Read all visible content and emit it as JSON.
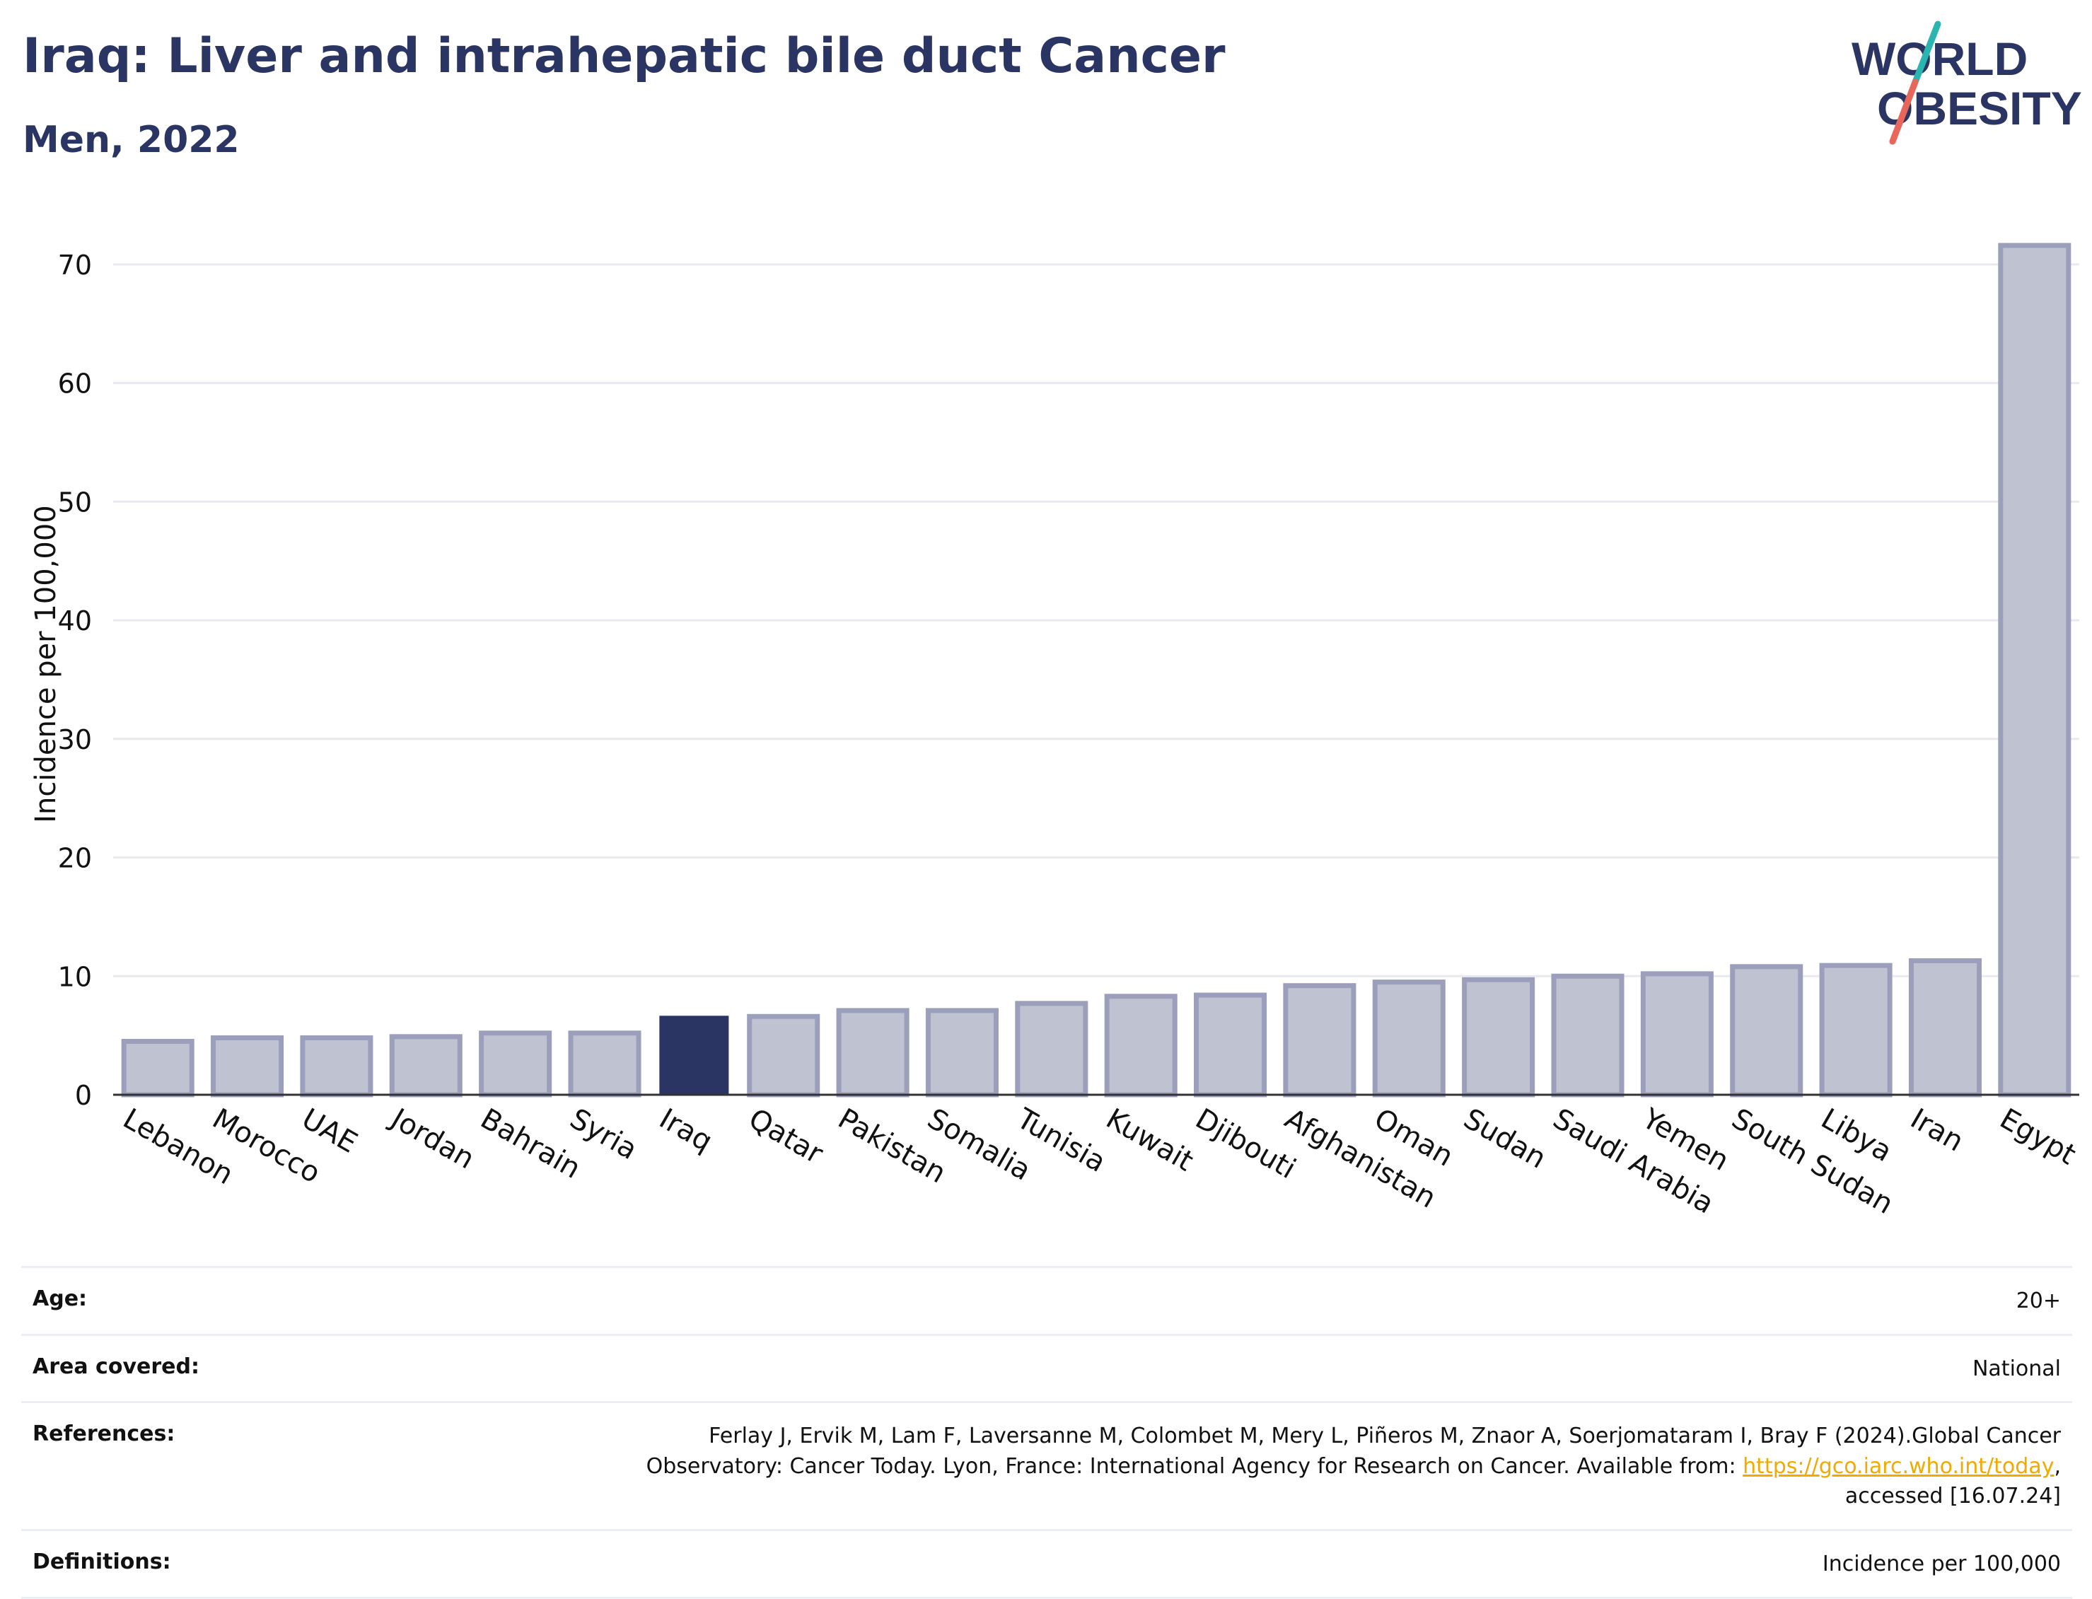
{
  "header": {
    "title": "Iraq: Liver and intrahepatic bile duct Cancer",
    "subtitle": "Men, 2022"
  },
  "logo": {
    "line1": "WORLD",
    "line2": "OBESITY",
    "text_color": "#2a3563",
    "slash_top_color": "#2bb5b0",
    "slash_bottom_color": "#e8675a"
  },
  "chart_data": {
    "type": "bar",
    "categories": [
      "Lebanon",
      "Morocco",
      "UAE",
      "Jordan",
      "Bahrain",
      "Syria",
      "Iraq",
      "Qatar",
      "Pakistan",
      "Somalia",
      "Tunisia",
      "Kuwait",
      "Djibouti",
      "Afghanistan",
      "Oman",
      "Sudan",
      "Saudi Arabia",
      "Yemen",
      "South Sudan",
      "Libya",
      "Iran",
      "Egypt"
    ],
    "values": [
      4.5,
      4.8,
      4.8,
      4.9,
      5.2,
      5.2,
      6.6,
      6.6,
      7.1,
      7.1,
      7.7,
      8.3,
      8.4,
      9.2,
      9.5,
      9.7,
      10.0,
      10.2,
      10.8,
      10.9,
      11.3,
      71.6
    ],
    "highlight": "Iraq",
    "ylabel": "Incidence per 100,000",
    "ylim": [
      0,
      75
    ],
    "yticks": [
      0,
      10,
      20,
      30,
      40,
      50,
      60,
      70
    ],
    "grid": true,
    "colors": {
      "highlight": "#2a3563",
      "bar_fill": "#bfc2d0",
      "bar_border": "#9b9fbb",
      "grid": "#e9eaf0"
    }
  },
  "meta": {
    "age_label": "Age:",
    "age_value": "20+",
    "area_label": "Area covered:",
    "area_value": "National",
    "references_label": "References:",
    "references_line1": "Ferlay J, Ervik M, Lam F, Laversanne M, Colombet M, Mery L, Piñeros M, Znaor A, Soerjomataram I, Bray F (2024).Global Cancer",
    "references_line2_pre": "Observatory: Cancer Today. Lyon, France: International Agency for Research on Cancer. Available from: ",
    "references_link": "https://gco.iarc.who.int/today",
    "references_line2_post": ",",
    "references_line3": "accessed [16.07.24]",
    "definitions_label": "Definitions:",
    "definitions_value": "Incidence per 100,000",
    "link_color": "#f2a900"
  }
}
